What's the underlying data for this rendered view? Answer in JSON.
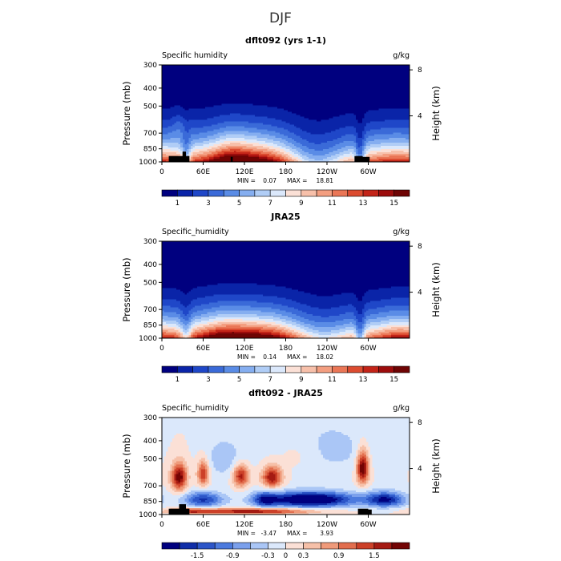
{
  "figure": {
    "title": "DJF"
  },
  "colors": {
    "absolute_scale": [
      "#00007f",
      "#0a24a8",
      "#1f47c8",
      "#3a6ad8",
      "#5a8ce6",
      "#85aef0",
      "#b0cdf6",
      "#dbe8fb",
      "#fbe0d6",
      "#f7c0aa",
      "#f39e80",
      "#ea7656",
      "#dc4c30",
      "#c32418",
      "#9c0c0c",
      "#6e0404"
    ],
    "difference_scale": [
      "#00007f",
      "#102ea8",
      "#2c55c8",
      "#4c7ade",
      "#7ba0ec",
      "#aac6f6",
      "#dbe8fb",
      "#fbe0d6",
      "#f6c0a8",
      "#ef9a7a",
      "#e26e4e",
      "#cc4028",
      "#a51a12",
      "#730404"
    ],
    "land_mask": "#000000"
  },
  "chart_data": [
    {
      "type": "heatmap",
      "title": "dflt092 (yrs 1-1)",
      "variable_label": "Specific humidity",
      "units": "g/kg",
      "ylabel": "Pressure (mb)",
      "right_ylabel": "Height (km)",
      "x_ticks": [
        "0",
        "60E",
        "120E",
        "180",
        "120W",
        "60W"
      ],
      "x_tick_values": [
        0,
        60,
        120,
        180,
        240,
        300
      ],
      "xlim": [
        0,
        360
      ],
      "y_ticks": [
        "300",
        "400",
        "500",
        "700",
        "850",
        "1000"
      ],
      "y_tick_values": [
        300,
        400,
        500,
        700,
        850,
        1000
      ],
      "ylim": [
        300,
        1000
      ],
      "right_ticks": [
        "8",
        "4"
      ],
      "right_tick_values": [
        8,
        4
      ],
      "min_label": "MIN = ",
      "min_value": "0.07",
      "max_label": "MAX = ",
      "max_value": "18.81",
      "colorbar_labels": [
        "1",
        "3",
        "5",
        "7",
        "9",
        "11",
        "13",
        "15"
      ],
      "colorbar_levels": [
        0,
        1,
        2,
        3,
        4,
        5,
        6,
        7,
        8,
        9,
        10,
        11,
        12,
        13,
        14,
        15,
        16
      ],
      "palette": "absolute",
      "field": "model",
      "land_blocks": [
        {
          "lon": [
            10,
            40
          ],
          "p": [
            930,
            1000
          ]
        },
        {
          "lon": [
            30,
            35
          ],
          "p": [
            880,
            1000
          ]
        },
        {
          "lon": [
            100,
            103
          ],
          "p": [
            940,
            1000
          ]
        },
        {
          "lon": [
            280,
            292
          ],
          "p": [
            930,
            1000
          ]
        },
        {
          "lon": [
            290,
            302
          ],
          "p": [
            940,
            1000
          ]
        }
      ]
    },
    {
      "type": "heatmap",
      "title": "JRA25",
      "variable_label": "Specific_humidity",
      "units": "g/kg",
      "ylabel": "Pressure (mb)",
      "right_ylabel": "Height (km)",
      "x_ticks": [
        "0",
        "60E",
        "120E",
        "180",
        "120W",
        "60W"
      ],
      "x_tick_values": [
        0,
        60,
        120,
        180,
        240,
        300
      ],
      "xlim": [
        0,
        360
      ],
      "y_ticks": [
        "300",
        "400",
        "500",
        "700",
        "850",
        "1000"
      ],
      "y_tick_values": [
        300,
        400,
        500,
        700,
        850,
        1000
      ],
      "ylim": [
        300,
        1000
      ],
      "right_ticks": [
        "8",
        "4"
      ],
      "right_tick_values": [
        8,
        4
      ],
      "min_label": "MIN = ",
      "min_value": "0.14",
      "max_label": "MAX = ",
      "max_value": "18.02",
      "colorbar_labels": [
        "1",
        "3",
        "5",
        "7",
        "9",
        "11",
        "13",
        "15"
      ],
      "colorbar_levels": [
        0,
        1,
        2,
        3,
        4,
        5,
        6,
        7,
        8,
        9,
        10,
        11,
        12,
        13,
        14,
        15,
        16
      ],
      "palette": "absolute",
      "field": "obs",
      "land_blocks": []
    },
    {
      "type": "heatmap",
      "title": "dflt092 - JRA25",
      "variable_label": "Specific_humidity",
      "units": "g/kg",
      "ylabel": "Pressure (mb)",
      "right_ylabel": "Height (km)",
      "x_ticks": [
        "0",
        "60E",
        "120E",
        "180",
        "120W",
        "60W"
      ],
      "x_tick_values": [
        0,
        60,
        120,
        180,
        240,
        300
      ],
      "xlim": [
        0,
        360
      ],
      "y_ticks": [
        "300",
        "400",
        "500",
        "700",
        "850",
        "1000"
      ],
      "y_tick_values": [
        300,
        400,
        500,
        700,
        850,
        1000
      ],
      "ylim": [
        300,
        1000
      ],
      "right_ticks": [
        "8",
        "4"
      ],
      "right_tick_values": [
        8,
        4
      ],
      "min_label": "MIN = ",
      "min_value": "-3.47",
      "max_label": "MAX = ",
      "max_value": "3.93",
      "colorbar_labels": [
        "-1.5",
        "-0.9",
        "-0.3",
        "0",
        "0.3",
        "0.9",
        "1.5"
      ],
      "colorbar_levels": [
        -2.1,
        -1.8,
        -1.5,
        -1.2,
        -0.9,
        -0.6,
        -0.3,
        0,
        0.3,
        0.6,
        0.9,
        1.2,
        1.5,
        1.8,
        2.1
      ],
      "palette": "difference",
      "field": "diff",
      "land_blocks": [
        {
          "lon": [
            10,
            40
          ],
          "p": [
            930,
            1000
          ]
        },
        {
          "lon": [
            25,
            35
          ],
          "p": [
            880,
            1000
          ]
        },
        {
          "lon": [
            285,
            300
          ],
          "p": [
            930,
            1000
          ]
        },
        {
          "lon": [
            298,
            305
          ],
          "p": [
            940,
            1000
          ]
        }
      ]
    }
  ]
}
